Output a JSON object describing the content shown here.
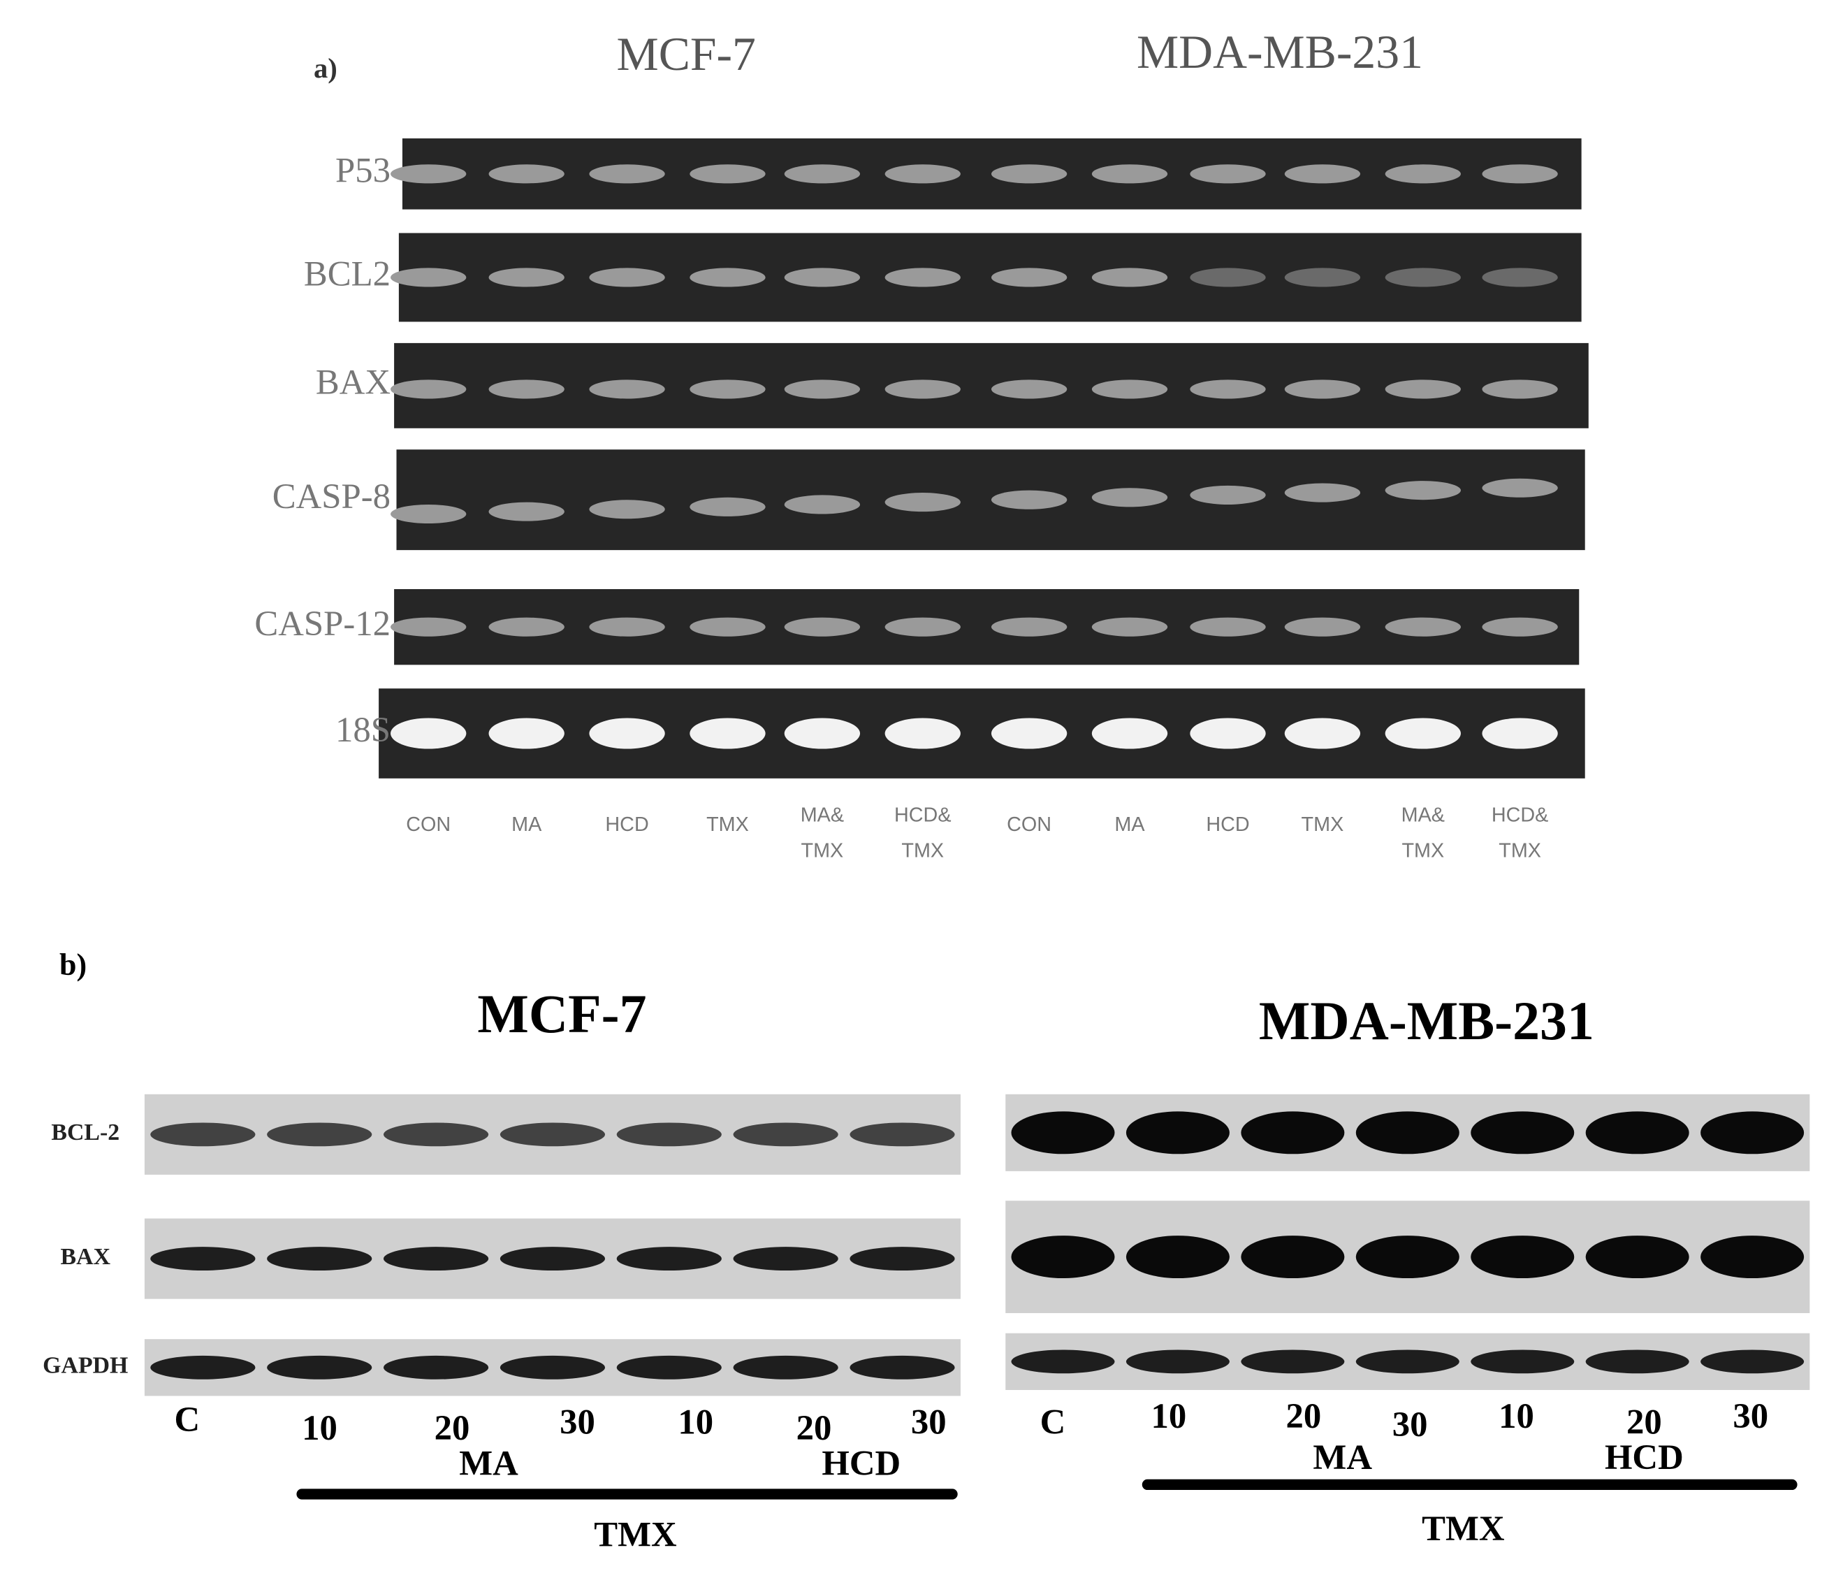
{
  "panel_a": {
    "label": "a)",
    "groups": [
      "MCF-7",
      "MDA-MB-231"
    ],
    "rows": [
      "P53",
      "BCL2",
      "BAX",
      "CASP-8",
      "CASP-12",
      "18S"
    ],
    "lanes": [
      [
        "CON"
      ],
      [
        "MA"
      ],
      [
        "HCD"
      ],
      [
        "TMX"
      ],
      [
        "MA&",
        "TMX"
      ],
      [
        "HCD&",
        "TMX"
      ],
      [
        "CON"
      ],
      [
        "MA"
      ],
      [
        "HCD"
      ],
      [
        "TMX"
      ],
      [
        "MA&",
        "TMX"
      ],
      [
        "HCD&",
        "TMX"
      ]
    ]
  },
  "panel_b": {
    "label": "b)",
    "rows": [
      "BCL-2",
      "BAX",
      "GAPDH"
    ],
    "groups": [
      {
        "title": "MCF-7",
        "lanes": [
          "C",
          "10",
          "20",
          "30",
          "10",
          "20",
          "30"
        ],
        "treatments": [
          "MA",
          "HCD"
        ],
        "bar": "TMX"
      },
      {
        "title": "MDA-MB-231",
        "lanes": [
          "C",
          "10",
          "20",
          "30",
          "10",
          "20",
          "30"
        ],
        "treatments": [
          "MA",
          "HCD"
        ],
        "bar": "TMX"
      }
    ]
  }
}
